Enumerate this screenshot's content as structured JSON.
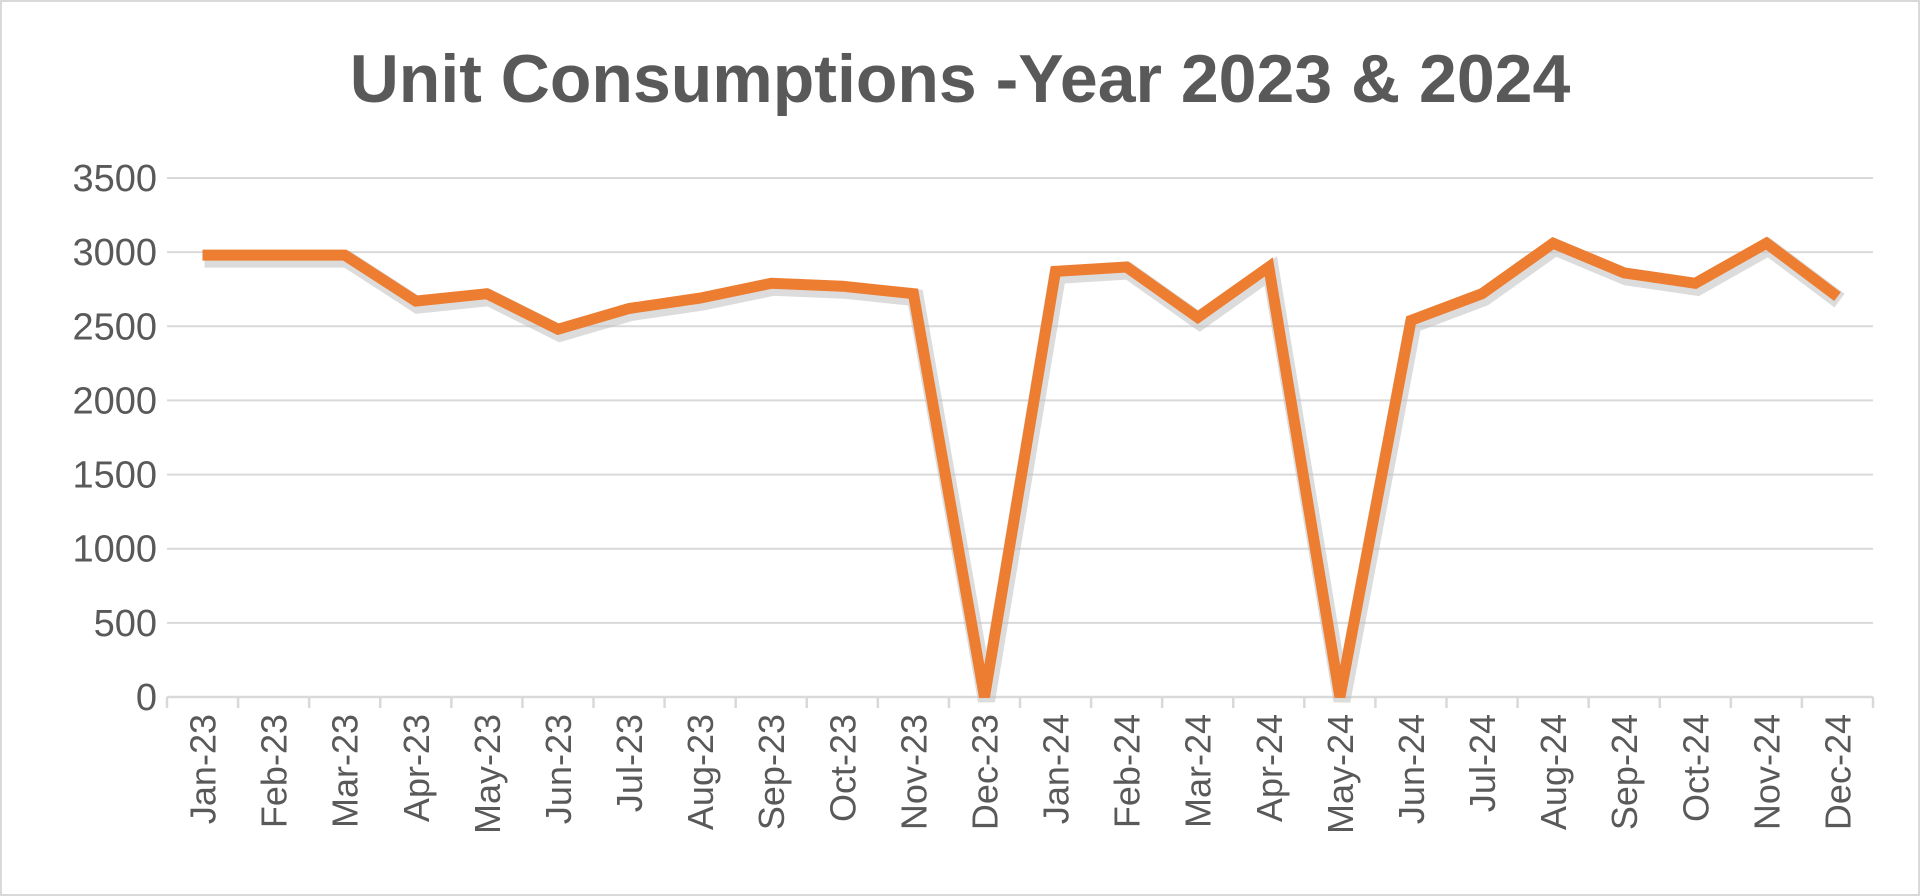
{
  "chart_data": {
    "type": "line",
    "title": "Unit Consumptions -Year 2023 & 2024",
    "xlabel": "",
    "ylabel": "",
    "ylim": [
      0,
      3500
    ],
    "yticks": [
      0,
      500,
      1000,
      1500,
      2000,
      2500,
      3000,
      3500
    ],
    "grid": true,
    "legend": "none",
    "categories": [
      "Jan-23",
      "Feb-23",
      "Mar-23",
      "Apr-23",
      "May-23",
      "Jun-23",
      "Jul-23",
      "Aug-23",
      "Sep-23",
      "Oct-23",
      "Nov-23",
      "Dec-23",
      "Jan-24",
      "Feb-24",
      "Mar-24",
      "Apr-24",
      "May-24",
      "Jun-24",
      "Jul-24",
      "Aug-24",
      "Sep-24",
      "Oct-24",
      "Nov-24",
      "Dec-24"
    ],
    "series": [
      {
        "color": "#ed7d31",
        "values": [
          2980,
          2980,
          2980,
          2670,
          2720,
          2480,
          2620,
          2690,
          2790,
          2770,
          2720,
          0,
          2870,
          2900,
          2560,
          2900,
          0,
          2540,
          2720,
          3060,
          2860,
          2790,
          3060,
          2700
        ]
      }
    ]
  }
}
